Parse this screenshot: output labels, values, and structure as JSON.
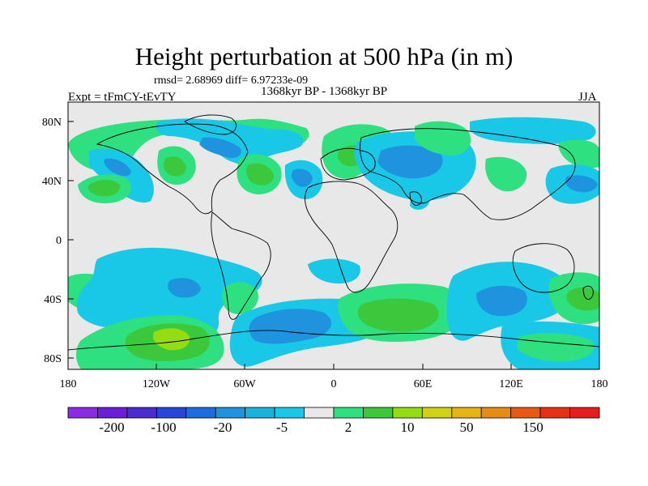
{
  "title": "Height perturbation at 500 hPa (in m)",
  "stats_text": "rmsd= 2.68969 diff= 6.97233e-09",
  "left_label": "Expt = tFmCY-tEvTY",
  "center_label": "1368kyr BP - 1368kyr BP",
  "right_label": "JJA",
  "map": {
    "projection": "cylindrical-equidistant",
    "lon_range": [
      -180,
      180
    ],
    "lat_range": [
      -90,
      90
    ],
    "lat_tick_labels": [
      "80N",
      "40N",
      "0",
      "40S",
      "80S"
    ],
    "lat_tick_values": [
      80,
      40,
      0,
      -40,
      -80
    ],
    "lon_tick_labels": [
      "180",
      "120W",
      "60W",
      "0",
      "60E",
      "120E",
      "180"
    ],
    "lon_tick_values": [
      -180,
      -120,
      -60,
      0,
      60,
      120,
      180
    ],
    "background_color": "#e8e8e8",
    "coastline_color": "#000000"
  },
  "colorbar": {
    "colors": [
      "#8b2be2",
      "#6a1fd6",
      "#4a2cd0",
      "#2846d8",
      "#1d6ce0",
      "#1f93de",
      "#19b2dd",
      "#19c8e6",
      "#e8e8e8",
      "#2ee080",
      "#3cc83c",
      "#96dc14",
      "#d2d214",
      "#e6b414",
      "#e68c14",
      "#e65a14",
      "#e63214",
      "#e61e1e"
    ],
    "labels": [
      "-200",
      "-100",
      "-20",
      "-5",
      "2",
      "10",
      "50",
      "150"
    ]
  },
  "chart_data": {
    "type": "heatmap",
    "title": "Height perturbation at 500 hPa (in m)",
    "variable": "500 hPa geopotential height perturbation",
    "units": "m",
    "season": "JJA",
    "rmsd": 2.68969,
    "diff": 6.97233e-09,
    "x_axis_labels": [
      "180",
      "120W",
      "60W",
      "0",
      "60E",
      "120E",
      "180"
    ],
    "y_axis_labels": [
      "80N",
      "40N",
      "0",
      "40S",
      "80S"
    ],
    "legend_labels": [
      "-200",
      "-100",
      "-20",
      "-5",
      "2",
      "10",
      "50",
      "150"
    ],
    "features": [
      {
        "lon": -150,
        "lat": 40,
        "level": 1
      },
      {
        "lon": -110,
        "lat": 42,
        "level": 1
      },
      {
        "lon": -40,
        "lat": 40,
        "level": 2
      },
      {
        "lon": -18,
        "lat": 40,
        "level": -3
      },
      {
        "lon": 35,
        "lat": 50,
        "level": -4
      },
      {
        "lon": -80,
        "lat": 65,
        "level": -3
      },
      {
        "lon": -112,
        "lat": -75,
        "level": 3
      },
      {
        "lon": 40,
        "lat": -50,
        "level": 2
      },
      {
        "lon": -45,
        "lat": -62,
        "level": -3
      },
      {
        "lon": 100,
        "lat": -53,
        "level": -3
      },
      {
        "lon": 170,
        "lat": -40,
        "level": 1
      },
      {
        "lon": -160,
        "lat": -40,
        "level": 1
      }
    ]
  }
}
